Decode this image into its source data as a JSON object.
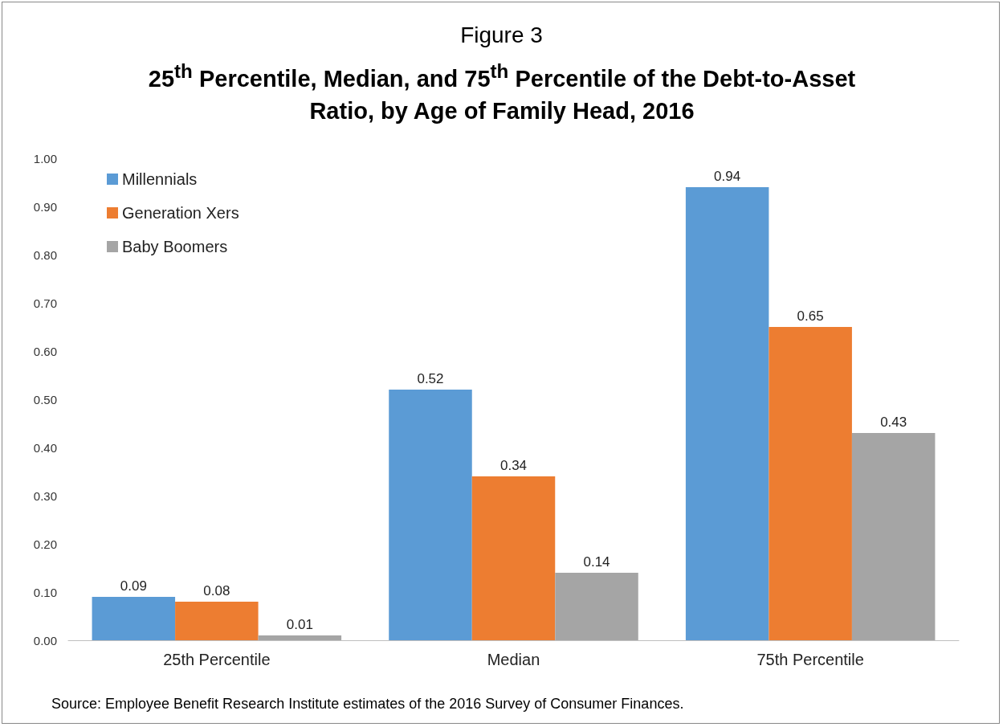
{
  "chart_data": {
    "type": "bar",
    "title": "Figure 3",
    "subtitle": "25$^{th}$ Percentile, Median, and 75$^{th}$ Percentile of the Debt-to-Asset Ratio, by Age of Family Head, 2016",
    "categories": [
      "25th Percentile",
      "Median",
      "75th Percentile"
    ],
    "series": [
      {
        "name": "Millennials",
        "color": "#5b9bd5",
        "values": [
          0.09,
          0.52,
          0.94
        ]
      },
      {
        "name": "Generation Xers",
        "color": "#ed7d31",
        "values": [
          0.08,
          0.34,
          0.65
        ]
      },
      {
        "name": "Baby Boomers",
        "color": "#a5a5a5",
        "values": [
          0.01,
          0.14,
          0.43
        ]
      }
    ],
    "ylim": [
      0,
      1
    ],
    "yticks": [
      {
        "value": 0,
        "label": "0.00"
      },
      {
        "value": 0.1,
        "label": "0.10"
      },
      {
        "value": 0.2,
        "label": "0.20"
      },
      {
        "value": 0.3,
        "label": "0.30"
      },
      {
        "value": 0.4,
        "label": "0.40"
      },
      {
        "value": 0.5,
        "label": "0.50"
      },
      {
        "value": 0.6,
        "label": "0.60"
      },
      {
        "value": 0.7,
        "label": "0.70"
      },
      {
        "value": 0.8,
        "label": "0.80"
      },
      {
        "value": 0.9,
        "label": "0.90"
      },
      {
        "value": 1,
        "label": "1.00"
      }
    ],
    "grid": false,
    "legend": "top left",
    "data_labels": true,
    "annotations": [
      "Source: Employee Benefit Research Institute estimates of the 2016 Survey of Consumer Finances."
    ]
  }
}
